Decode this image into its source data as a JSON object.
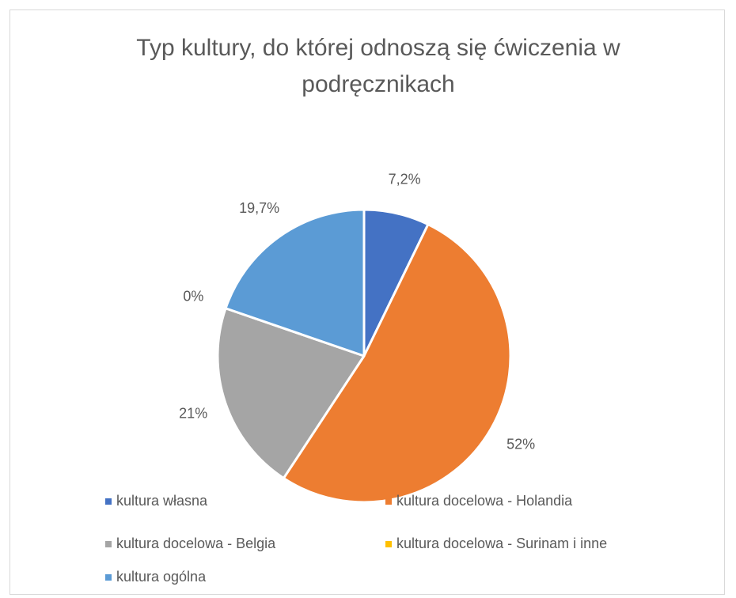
{
  "chart_data": {
    "type": "pie",
    "title": "Typ kultury, do której odnoszą się ćwiczenia w podręcznikach",
    "categories": [
      "kultura własna",
      "kultura docelowa - Holandia",
      "kultura docelowa - Belgia",
      "kultura docelowa - Surinam i inne",
      "kultura ogólna"
    ],
    "values": [
      7.2,
      52,
      21,
      0,
      19.7
    ],
    "value_labels": [
      "7,2%",
      "52%",
      "21%",
      "0%",
      "19,7%"
    ],
    "colors": [
      "#4472c4",
      "#ed7d31",
      "#a5a5a5",
      "#ffc000",
      "#5b9bd5"
    ],
    "legend": "bottom"
  }
}
